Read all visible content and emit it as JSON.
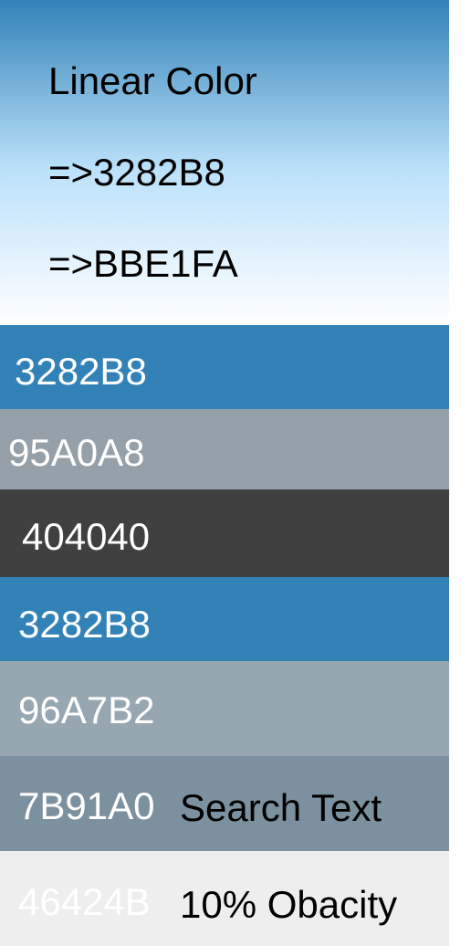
{
  "gradient": {
    "title": "Linear Color",
    "from_label": "=>3282B8",
    "to_label": "=>BBE1FA",
    "from_color": "#3282B8",
    "to_color": "#BBE1FA"
  },
  "swatches": [
    {
      "label": "3282B8",
      "color": "#3282B8",
      "text_color": "#ffffff"
    },
    {
      "label": "95A0A8",
      "color": "#95A0A8",
      "text_color": "#ffffff"
    },
    {
      "label": "404040",
      "color": "#404040",
      "text_color": "#ffffff"
    },
    {
      "label": "3282B8",
      "color": "#3282B8",
      "text_color": "#ffffff"
    },
    {
      "label": "96A7B2",
      "color": "#96A7B2",
      "text_color": "#ffffff"
    },
    {
      "label": "7B91A0",
      "color": "#7B91A0",
      "text_color": "#ffffff",
      "extra": "Search Text"
    },
    {
      "label": "46424B",
      "color": "#EEEEEE",
      "text_color": "#ffffff",
      "extra": "10% Obacity",
      "note": "46424B at 10% opacity"
    }
  ]
}
